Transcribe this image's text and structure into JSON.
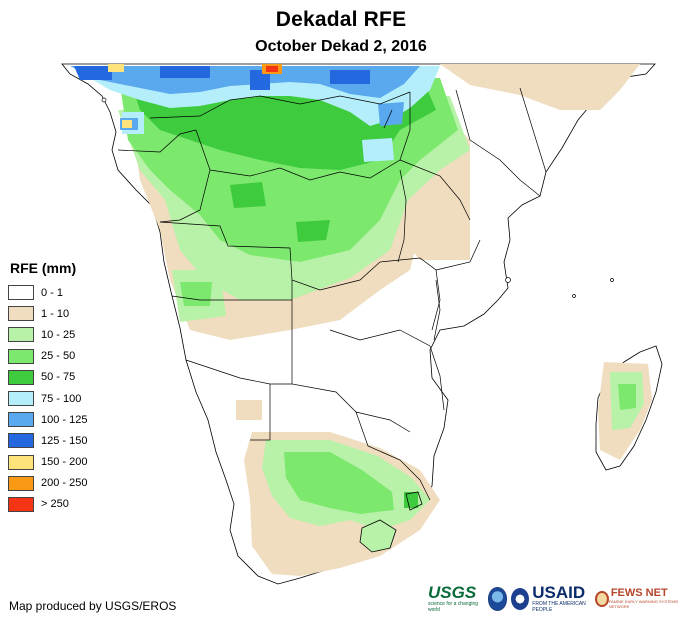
{
  "header": {
    "title": "Dekadal RFE",
    "subtitle": "October Dekad 2, 2016"
  },
  "legend": {
    "title": "RFE (mm)",
    "items": [
      {
        "label": "0 - 1",
        "color": "#ffffff"
      },
      {
        "label": "1 - 10",
        "color": "#f0dcbe"
      },
      {
        "label": "10 - 25",
        "color": "#b8f2a8"
      },
      {
        "label": "25 - 50",
        "color": "#7ce86e"
      },
      {
        "label": "50 - 75",
        "color": "#3ecb3e"
      },
      {
        "label": "75 - 100",
        "color": "#b4eefa"
      },
      {
        "label": "100 - 125",
        "color": "#5aa8ee"
      },
      {
        "label": "125 - 150",
        "color": "#2468e0"
      },
      {
        "label": "150 - 200",
        "color": "#fde37a"
      },
      {
        "label": "200 - 250",
        "color": "#fa9a14"
      },
      {
        "label": "> 250",
        "color": "#f43414"
      }
    ]
  },
  "footer": {
    "credit": "Map produced by USGS/EROS"
  },
  "logos": {
    "usgs": "USGS",
    "usgs_tagline": "science for a changing world",
    "noaa": "noaa-logo",
    "usaid": "USAID",
    "usaid_tagline": "FROM THE AMERICAN PEOPLE",
    "fews": "FEWS NET",
    "fews_tagline": "FAMINE EARLY WARNING SYSTEMS NETWORK"
  },
  "map": {
    "region": "Southern Africa",
    "colors": {
      "land": "#ffffff",
      "border": "#000000"
    }
  }
}
